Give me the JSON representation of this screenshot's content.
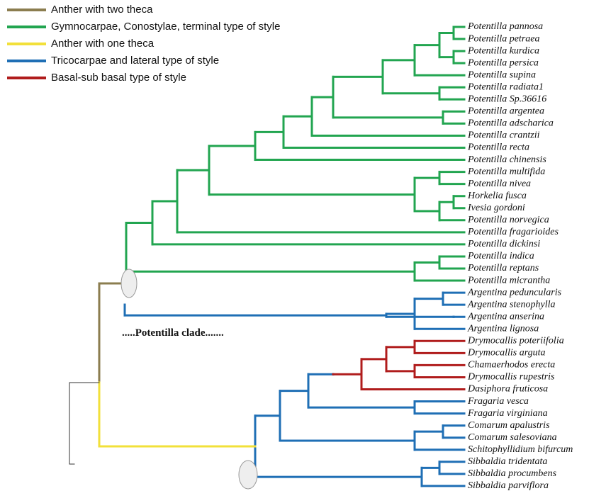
{
  "legend": [
    {
      "label": "Anther with two theca",
      "color": "#8b7d4f"
    },
    {
      "label": "Gymnocarpae, Conostylae, terminal  type of style",
      "color": "#22a550"
    },
    {
      "label": "Anther with one theca",
      "color": "#f2e03a"
    },
    {
      "label": "Tricocarpae and lateral type of style",
      "color": "#1f6fb5"
    },
    {
      "label": "Basal-sub basal type of style",
      "color": "#b01c1c"
    }
  ],
  "taxa": [
    "Potentilla pannosa",
    "Potentilla petraea",
    "Potentilla kurdica",
    "Potentilla persica",
    "Potentilla supina",
    "Potentilla radiata1",
    "Potentilla Sp.36616",
    "Potentilla argentea",
    "Potentilla adscharica",
    "Potentilla crantzii",
    "Potentilla recta",
    "Potentilla chinensis",
    "Potentilla multifida",
    "Potentilla nivea",
    "Horkelia fusca",
    "Ivesia gordoni",
    "Potentilla norvegica",
    "Potentilla fragarioides",
    "Potentilla dickinsi",
    "Potentilla indica",
    "Potentilla reptans",
    "Potentilla micrantha",
    "Argentina peduncularis",
    "Argentina stenophylla",
    "Argentina anserina",
    "Argentina lignosa",
    "Drymocallis poteriifolia",
    "Drymocallis arguta",
    "Chamaerhodos erecta",
    "Drymocallis rupestris",
    "Dasiphora fruticosa",
    "Fragaria vesca",
    "Fragaria virginiana",
    "Comarum apalustris",
    "Comarum salesoviana",
    "Schitophyllidium bifurcum",
    "Sibbaldia tridentata",
    "Sibbaldia procumbens",
    "Sibbaldia parviflora"
  ],
  "clade_label": ".....Potentilla clade......."
}
